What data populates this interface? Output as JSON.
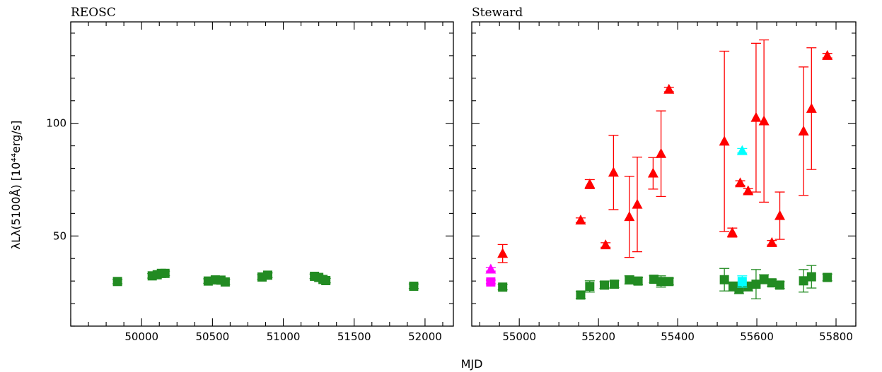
{
  "figure": {
    "xlabel": "MJD",
    "ylabel": "λLλ(5100Å) [10⁴⁴erg/s]"
  },
  "chart_data": [
    {
      "type": "scatter",
      "title": "REOSC",
      "xlabel": "MJD",
      "ylabel": "λLλ(5100Å) [10⁴⁴erg/s]",
      "xlim": [
        49500,
        52200
      ],
      "ylim": [
        10,
        145
      ],
      "x_ticks": [
        50000,
        50500,
        51000,
        51500,
        52000
      ],
      "y_ticks": [
        50,
        100
      ],
      "y_tick_labels_shown": true,
      "grid": false,
      "series": [
        {
          "marker": "square",
          "color": "#228b22",
          "points": [
            {
              "x": 49830,
              "y": 29.8,
              "err": 1.0
            },
            {
              "x": 50075,
              "y": 32.3,
              "err": 1.0
            },
            {
              "x": 50110,
              "y": 32.8,
              "err": 1.0
            },
            {
              "x": 50140,
              "y": 33.4,
              "err": 1.0
            },
            {
              "x": 50165,
              "y": 33.4,
              "err": 1.0
            },
            {
              "x": 50470,
              "y": 30.0,
              "err": 1.0
            },
            {
              "x": 50520,
              "y": 30.5,
              "err": 1.0
            },
            {
              "x": 50560,
              "y": 30.4,
              "err": 1.0
            },
            {
              "x": 50590,
              "y": 29.6,
              "err": 1.0
            },
            {
              "x": 50850,
              "y": 31.8,
              "err": 1.0
            },
            {
              "x": 50890,
              "y": 32.6,
              "err": 1.0
            },
            {
              "x": 51220,
              "y": 32.1,
              "err": 1.0
            },
            {
              "x": 51250,
              "y": 31.6,
              "err": 1.0
            },
            {
              "x": 51280,
              "y": 30.7,
              "err": 1.0
            },
            {
              "x": 51300,
              "y": 30.2,
              "err": 1.0
            },
            {
              "x": 51920,
              "y": 27.7,
              "err": 1.0
            }
          ]
        }
      ]
    },
    {
      "type": "scatter",
      "title": "Steward",
      "xlabel": "MJD",
      "xlim": [
        54880,
        55850
      ],
      "ylim": [
        10,
        145
      ],
      "x_ticks": [
        55000,
        55200,
        55400,
        55600,
        55800
      ],
      "y_ticks": [
        50,
        100
      ],
      "y_tick_labels_shown": false,
      "grid": false,
      "series": [
        {
          "marker": "square",
          "color": "#228b22",
          "points": [
            {
              "x": 54958,
              "y": 27.3,
              "err": 1.2
            },
            {
              "x": 55155,
              "y": 23.8,
              "err": 1.5
            },
            {
              "x": 55178,
              "y": 27.6,
              "err": 2.5
            },
            {
              "x": 55215,
              "y": 28.2,
              "err": 1.5
            },
            {
              "x": 55240,
              "y": 28.6,
              "err": 1.5
            },
            {
              "x": 55278,
              "y": 30.5,
              "err": 1.8
            },
            {
              "x": 55300,
              "y": 30.0,
              "err": 1.5
            },
            {
              "x": 55340,
              "y": 30.8,
              "err": 1.5
            },
            {
              "x": 55358,
              "y": 29.8,
              "err": 2.5
            },
            {
              "x": 55378,
              "y": 29.8,
              "err": 1.5
            },
            {
              "x": 55518,
              "y": 30.6,
              "err": 5.0
            },
            {
              "x": 55540,
              "y": 27.6,
              "err": 2.0
            },
            {
              "x": 55555,
              "y": 26.4,
              "err": 2.0
            },
            {
              "x": 55578,
              "y": 27.6,
              "err": 2.0
            },
            {
              "x": 55598,
              "y": 28.6,
              "err": 6.5
            },
            {
              "x": 55618,
              "y": 30.8,
              "err": 2.0
            },
            {
              "x": 55638,
              "y": 29.2,
              "err": 1.5
            },
            {
              "x": 55658,
              "y": 28.2,
              "err": 1.5
            },
            {
              "x": 55718,
              "y": 30.1,
              "err": 5.0
            },
            {
              "x": 55738,
              "y": 31.9,
              "err": 5.0
            },
            {
              "x": 55778,
              "y": 31.6,
              "err": 1.5
            }
          ]
        },
        {
          "marker": "triangle",
          "color": "#ff0000",
          "points": [
            {
              "x": 54958,
              "y": 42.2,
              "err": 4.0
            },
            {
              "x": 55155,
              "y": 57.0,
              "err": 1.0
            },
            {
              "x": 55178,
              "y": 73.0,
              "err": 2.0
            },
            {
              "x": 55218,
              "y": 46.0,
              "err": 1.0
            },
            {
              "x": 55238,
              "y": 78.2,
              "err": 16.5
            },
            {
              "x": 55278,
              "y": 58.5,
              "err": 18.0
            },
            {
              "x": 55298,
              "y": 64.0,
              "err": 21.0
            },
            {
              "x": 55338,
              "y": 77.8,
              "err": 7.0
            },
            {
              "x": 55358,
              "y": 86.5,
              "err": 19.0
            },
            {
              "x": 55378,
              "y": 115.0,
              "err": 1.0
            },
            {
              "x": 55518,
              "y": 92.0,
              "err": 40.0
            },
            {
              "x": 55538,
              "y": 51.5,
              "err": 2.0
            },
            {
              "x": 55558,
              "y": 73.5,
              "err": 1.0
            },
            {
              "x": 55578,
              "y": 70.0,
              "err": 1.0
            },
            {
              "x": 55598,
              "y": 102.5,
              "err": 33.0
            },
            {
              "x": 55618,
              "y": 101.0,
              "err": 36.0
            },
            {
              "x": 55638,
              "y": 47.0,
              "err": 1.0
            },
            {
              "x": 55658,
              "y": 59.0,
              "err": 10.5
            },
            {
              "x": 55718,
              "y": 96.5,
              "err": 28.5
            },
            {
              "x": 55738,
              "y": 106.5,
              "err": 27.0
            },
            {
              "x": 55778,
              "y": 130.0,
              "err": 1.0
            }
          ]
        },
        {
          "marker": "triangle",
          "color": "#ff00ff",
          "points": [
            {
              "x": 54928,
              "y": 35.2,
              "err": 0.8
            }
          ]
        },
        {
          "marker": "square",
          "color": "#ff00ff",
          "points": [
            {
              "x": 54928,
              "y": 29.6,
              "err": 0.8
            }
          ]
        },
        {
          "marker": "triangle",
          "color": "#00ffff",
          "points": [
            {
              "x": 55563,
              "y": 87.8,
              "err": 1.0
            }
          ]
        },
        {
          "marker": "square",
          "color": "#00ffff",
          "points": [
            {
              "x": 55563,
              "y": 29.8,
              "err": 2.5
            }
          ]
        }
      ]
    }
  ]
}
